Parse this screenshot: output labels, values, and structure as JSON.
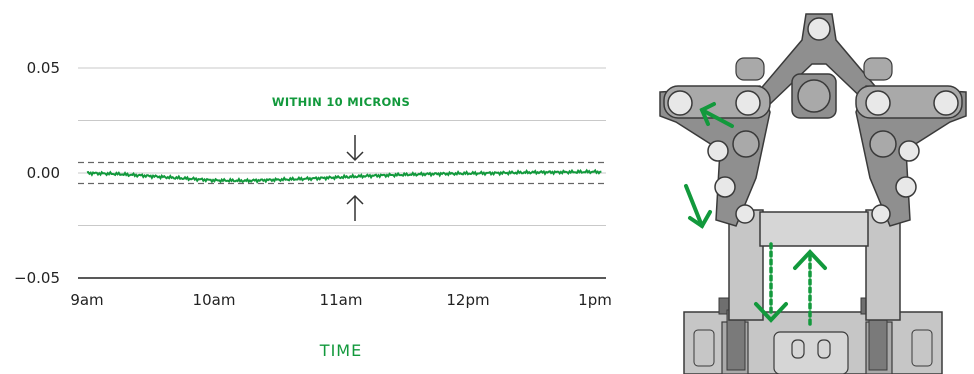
{
  "chart_data": {
    "type": "line",
    "title": "",
    "xlabel": "TIME",
    "ylabel": "",
    "x_ticks": [
      "9am",
      "10am",
      "11am",
      "12pm",
      "1pm"
    ],
    "y_ticks": [
      "0.05",
      "0.00",
      "−0.05"
    ],
    "y_tick_values": [
      0.05,
      0.0,
      -0.05
    ],
    "xlim": [
      9,
      13.05
    ],
    "ylim": [
      -0.05,
      0.05
    ],
    "grid": true,
    "tolerance_band": [
      -0.005,
      0.005
    ],
    "annotation": "WITHIN 10 MICRONS",
    "series": [
      {
        "x": [
          9,
          9.25,
          9.5,
          9.75,
          10,
          10.25,
          10.5,
          10.75,
          11,
          11.25,
          11.5,
          11.75,
          12,
          12.25,
          12.5,
          12.75,
          13,
          13.05
        ],
        "values": [
          0.0,
          -0.0005,
          -0.0015,
          -0.0025,
          -0.0035,
          -0.0037,
          -0.0032,
          -0.0027,
          -0.002,
          -0.0013,
          -0.0008,
          -0.0004,
          -0.0002,
          0.0,
          0.0003,
          0.0004,
          0.0006,
          0.0004
        ]
      }
    ],
    "colors": {
      "accent": "#12993c",
      "grid": "#c9c9c9",
      "band": "#666666",
      "axis": "#222222"
    }
  },
  "illustration": {
    "colors": {
      "arm_dark": "#8f8f8f",
      "arm_light": "#c6c6c6",
      "joint": "#e8e8e8",
      "outline": "#3a3a3a",
      "arrow": "#12993c"
    }
  }
}
